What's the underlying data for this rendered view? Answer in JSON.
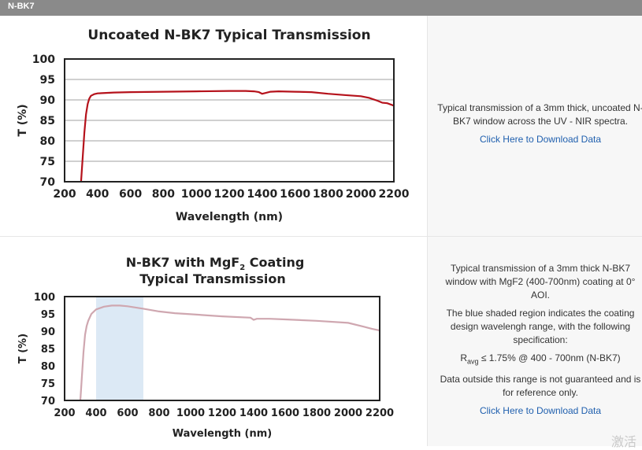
{
  "header": {
    "label": "N-BK7"
  },
  "colors": {
    "uncoated_line": "#b5121b",
    "coated_line": "#cfa7b0",
    "shade": "#dce9f5",
    "grid": "#b3b3b3",
    "link": "#1f5fae"
  },
  "rows": [
    {
      "description": "Typical transmission of a 3mm thick, uncoated N-BK7 window across the UV - NIR spectra.",
      "link": "Click Here to Download Data"
    },
    {
      "description_paragraphs": [
        "Typical transmission of a 3mm thick N-BK7 window with MgF2 (400-700nm) coating at 0° AOI.",
        "The blue shaded region indicates the coating design wavelengh range, with the following specification:"
      ],
      "spec_prefix": "R",
      "spec_sub": "avg",
      "spec_suffix": " ≤ 1.75% @ 400 - 700nm (N-BK7)",
      "note": "Data outside this range is not guaranteed and is for reference only.",
      "link": "Click Here to Download Data"
    }
  ],
  "chart_data": [
    {
      "type": "line",
      "title": "Uncoated N-BK7 Typical Transmission",
      "xlabel": "Wavelength (nm)",
      "ylabel": "T (%)",
      "xlim": [
        200,
        2200
      ],
      "ylim": [
        70,
        100
      ],
      "xticks": [
        200,
        400,
        600,
        800,
        1000,
        1200,
        1400,
        1600,
        1800,
        2000,
        2200
      ],
      "yticks": [
        70,
        75,
        80,
        85,
        90,
        95,
        100
      ],
      "grid": true,
      "series": [
        {
          "x": [
            300,
            310,
            320,
            330,
            340,
            350,
            360,
            380,
            400,
            500,
            600,
            800,
            1000,
            1200,
            1300,
            1350,
            1380,
            1400,
            1420,
            1450,
            1500,
            1600,
            1700,
            1800,
            1900,
            2000,
            2050,
            2100,
            2130,
            2160,
            2200
          ],
          "y": [
            70,
            76,
            82,
            86.5,
            89,
            90.3,
            91.0,
            91.4,
            91.6,
            91.8,
            91.9,
            92.0,
            92.1,
            92.2,
            92.2,
            92.1,
            91.9,
            91.5,
            91.7,
            92.0,
            92.1,
            92.0,
            91.9,
            91.5,
            91.2,
            90.9,
            90.5,
            89.8,
            89.3,
            89.2,
            88.6
          ]
        }
      ]
    },
    {
      "type": "line",
      "title": "N-BK7 with MgF",
      "title_sub": "2",
      "title_suffix": " Coating",
      "title_line2": "Typical Transmission",
      "xlabel": "Wavelength (nm)",
      "ylabel": "T (%)",
      "xlim": [
        200,
        2200
      ],
      "ylim": [
        70,
        100
      ],
      "xticks": [
        200,
        400,
        600,
        800,
        1000,
        1200,
        1400,
        1600,
        1800,
        2000,
        2200
      ],
      "yticks": [
        70,
        75,
        80,
        85,
        90,
        95,
        100
      ],
      "grid": false,
      "shaded_range": [
        400,
        700
      ],
      "series": [
        {
          "x": [
            300,
            310,
            320,
            330,
            340,
            350,
            370,
            400,
            450,
            500,
            550,
            600,
            700,
            800,
            900,
            1000,
            1200,
            1380,
            1400,
            1420,
            1500,
            1600,
            1800,
            2000,
            2100,
            2150,
            2200
          ],
          "y": [
            70,
            77,
            84,
            89,
            91.5,
            93,
            95,
            96.3,
            97.1,
            97.4,
            97.4,
            97.2,
            96.5,
            95.7,
            95.2,
            94.9,
            94.3,
            93.9,
            93.3,
            93.6,
            93.6,
            93.4,
            93.0,
            92.4,
            91.3,
            90.7,
            90.2
          ]
        }
      ]
    }
  ]
}
